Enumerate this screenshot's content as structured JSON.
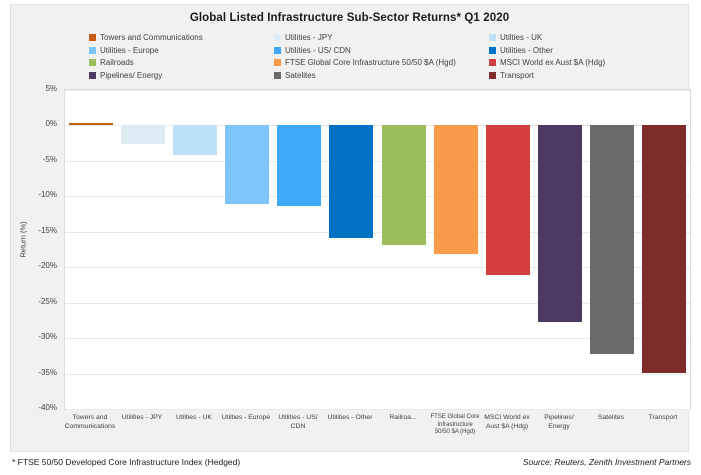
{
  "title": "Global Listed Infrastructure Sub-Sector Returns* Q1 2020",
  "legend": {
    "items": [
      {
        "label": "Towers and Communications",
        "color": "#C55A11"
      },
      {
        "label": "Utilities - JPY",
        "color": "#DDEBF5"
      },
      {
        "label": "Utilties - UK",
        "color": "#BDE0F6"
      },
      {
        "label": "Utilities - Europe",
        "color": "#7EC5FA"
      },
      {
        "label": "Utilities - US/ CDN",
        "color": "#3FA9F7"
      },
      {
        "label": "Utilities - Other",
        "color": "#0071C5"
      },
      {
        "label": "Railroads",
        "color": "#9CBD5B"
      },
      {
        "label": "FTSE Global Core Infrastructure 50/50 $A (Hgd)",
        "color": "#F79B4B"
      },
      {
        "label": "MSCI World ex Aust $A (Hdg)",
        "color": "#D33F3F"
      },
      {
        "label": "Pipelines/ Energy",
        "color": "#4B3A62"
      },
      {
        "label": "Satelites",
        "color": "#6A696B"
      },
      {
        "label": "Transport",
        "color": "#7D2B2B"
      }
    ]
  },
  "chart_data": {
    "type": "bar",
    "title": "Global Listed Infrastructure Sub-Sector Returns* Q1 2020",
    "ylabel": "Return (%)",
    "ylim": [
      -40,
      5
    ],
    "yticks": [
      5,
      0,
      -5,
      -10,
      -15,
      -20,
      -25,
      -30,
      -35,
      -40
    ],
    "ytick_labels": [
      "5%",
      "0%",
      "-5%",
      "-10%",
      "-15%",
      "-20%",
      "-25%",
      "-30%",
      "-35%",
      "-40%"
    ],
    "grid": true,
    "legend_position": "top",
    "categories": [
      "Towers and Communications",
      "Utilities - JPY",
      "Utilties - UK",
      "Utilties - Europe",
      "Utilities - US/ CDN",
      "Utilities - Other",
      "Railroa...",
      "FTSE Global Core Infrastructure 50/50 $A (Hgd)",
      "MSCI World ex Aust $A (Hdg)",
      "Pipelines/ Energy",
      "Satelites",
      "Transport"
    ],
    "values": [
      0.4,
      -2.6,
      -4.1,
      -11.1,
      -11.3,
      -15.9,
      -16.9,
      -18.1,
      -21.1,
      -27.7,
      -32.3,
      -34.9
    ],
    "colors": [
      "#C55A11",
      "#DDEBF5",
      "#BDE0F6",
      "#7EC5FA",
      "#3FA9F7",
      "#0071C5",
      "#9CBD5B",
      "#F79B4B",
      "#D33F3F",
      "#4B3A62",
      "#6A696B",
      "#7D2B2B"
    ]
  },
  "footer": {
    "footnote": "* FTSE 50/50 Developed Core Infrastructure Index (Hedged)",
    "source": "Source: Reuters, Zenith Investment Partners"
  }
}
